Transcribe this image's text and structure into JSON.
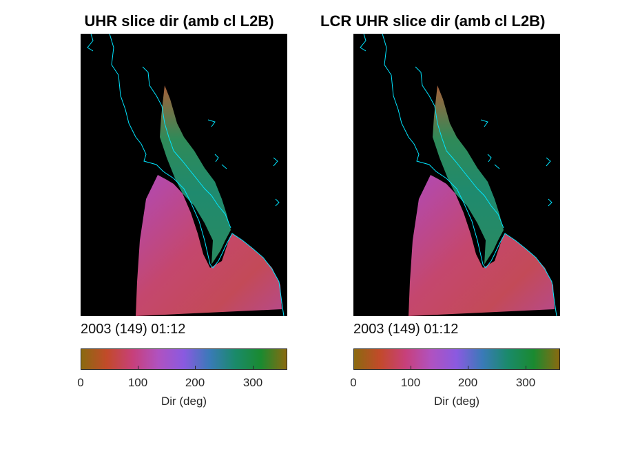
{
  "panels": [
    {
      "title": "UHR slice dir (amb cl L2B)",
      "timestamp": "2003 (149) 01:12",
      "colorbar": {
        "label": "Dir (deg)",
        "ticks": [
          "0",
          "100",
          "200",
          "300"
        ],
        "range": [
          0,
          360
        ]
      }
    },
    {
      "title": "LCR UHR slice dir (amb cl L2B)",
      "timestamp": "2003 (149) 01:12",
      "colorbar": {
        "label": "Dir (deg)",
        "ticks": [
          "0",
          "100",
          "200",
          "300"
        ],
        "range": [
          0,
          360
        ]
      }
    }
  ],
  "colors": {
    "background": "#000000",
    "coastline": "#00e5ff",
    "colormap": [
      "#8a6a10",
      "#c24a2a",
      "#c7407a",
      "#b052c0",
      "#8a5ae0",
      "#3a7ab8",
      "#1a8a6a",
      "#1a8a30",
      "#8a6a10"
    ]
  }
}
